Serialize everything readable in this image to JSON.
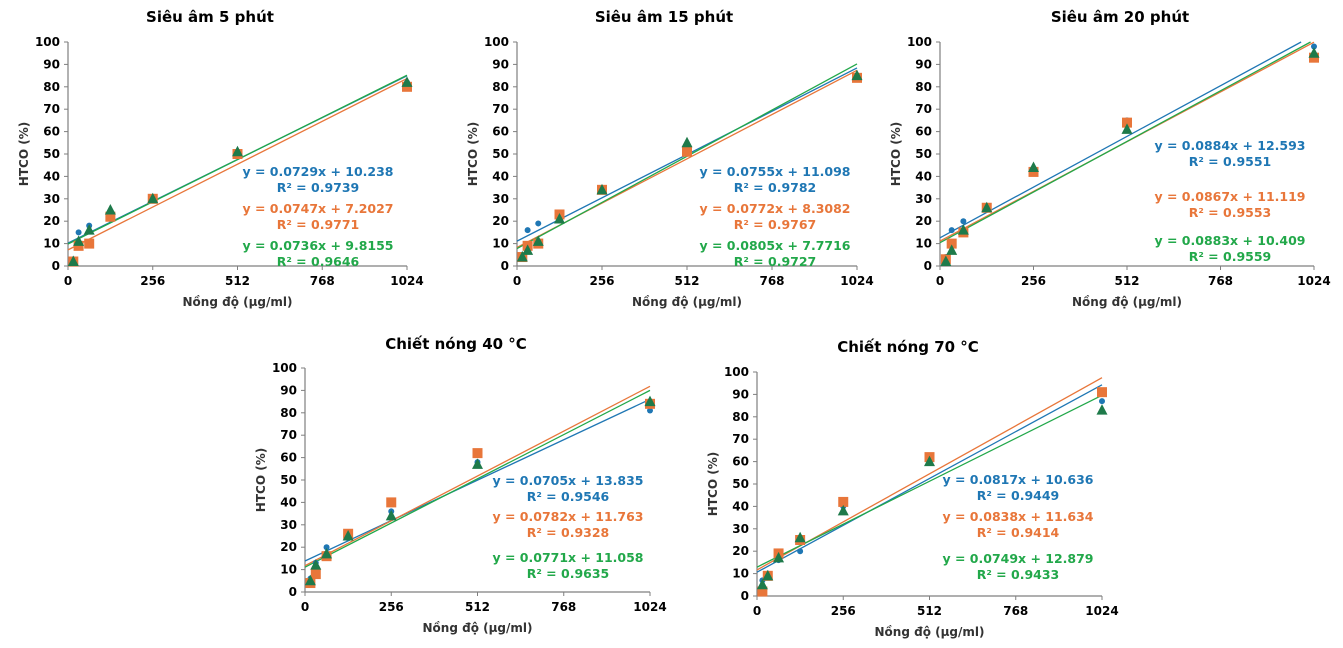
{
  "colors": {
    "blue": "#1F77B4",
    "orange": "#E8763A",
    "green": "#22A84A",
    "marker_green": "#1E7A4A",
    "axis": "#7F7F7F"
  },
  "chart_data": [
    {
      "type": "scatter",
      "title": "Siêu âm 5 phút",
      "xlabel": "Nồng độ (µg/ml)",
      "ylabel": "HTCO (%)",
      "xlim": [
        0,
        1024
      ],
      "ylim": [
        0,
        100
      ],
      "xticks": [
        0,
        256,
        512,
        768,
        1024
      ],
      "yticks": [
        0,
        10,
        20,
        30,
        40,
        50,
        60,
        70,
        80,
        90,
        100
      ],
      "series": [
        {
          "marker": "circle",
          "color": "#1F77B4",
          "points": [
            [
              16,
              3
            ],
            [
              32,
              15
            ],
            [
              64,
              18
            ],
            [
              128,
              21
            ],
            [
              256,
              30
            ],
            [
              512,
              50
            ],
            [
              1024,
              82
            ]
          ],
          "fit": {
            "slope": 0.0729,
            "intercept": 10.238
          },
          "equation": "y = 0.0729x + 10.238",
          "r2": "R² = 0.9739"
        },
        {
          "marker": "square",
          "color": "#E8763A",
          "points": [
            [
              16,
              2
            ],
            [
              32,
              9
            ],
            [
              64,
              10
            ],
            [
              128,
              22
            ],
            [
              256,
              30
            ],
            [
              512,
              50
            ],
            [
              1024,
              80
            ]
          ],
          "fit": {
            "slope": 0.0747,
            "intercept": 7.2027
          },
          "equation": "y = 0.0747x + 7.2027",
          "r2": "R² = 0.9771"
        },
        {
          "marker": "triangle",
          "color": "#1E7A4A",
          "points": [
            [
              16,
              2
            ],
            [
              32,
              11
            ],
            [
              64,
              16
            ],
            [
              128,
              25
            ],
            [
              256,
              30
            ],
            [
              512,
              51
            ],
            [
              1024,
              82
            ]
          ],
          "fit": {
            "slope": 0.0736,
            "intercept": 9.8155
          },
          "equation": "y = 0.0736x + 9.8155",
          "r2": "R² = 0.9646"
        }
      ]
    },
    {
      "type": "scatter",
      "title": "Siêu âm 15 phút",
      "xlabel": "Nồng độ (µg/ml)",
      "ylabel": "HTCO (%)",
      "xlim": [
        0,
        1024
      ],
      "ylim": [
        0,
        100
      ],
      "xticks": [
        0,
        256,
        512,
        768,
        1024
      ],
      "yticks": [
        0,
        10,
        20,
        30,
        40,
        50,
        60,
        70,
        80,
        90,
        100
      ],
      "series": [
        {
          "marker": "circle",
          "color": "#1F77B4",
          "points": [
            [
              16,
              5
            ],
            [
              32,
              16
            ],
            [
              64,
              19
            ],
            [
              128,
              22
            ],
            [
              256,
              34
            ],
            [
              512,
              52
            ],
            [
              1024,
              85
            ]
          ],
          "fit": {
            "slope": 0.0755,
            "intercept": 11.098
          },
          "equation": "y = 0.0755x + 11.098",
          "r2": "R² = 0.9782"
        },
        {
          "marker": "square",
          "color": "#E8763A",
          "points": [
            [
              16,
              4
            ],
            [
              32,
              9
            ],
            [
              64,
              10
            ],
            [
              128,
              23
            ],
            [
              256,
              34
            ],
            [
              512,
              51
            ],
            [
              1024,
              84
            ]
          ],
          "fit": {
            "slope": 0.0772,
            "intercept": 8.3082
          },
          "equation": "y = 0.0772x + 8.3082",
          "r2": "R² = 0.9767"
        },
        {
          "marker": "triangle",
          "color": "#1E7A4A",
          "points": [
            [
              16,
              4
            ],
            [
              32,
              7
            ],
            [
              64,
              11
            ],
            [
              128,
              21
            ],
            [
              256,
              34
            ],
            [
              512,
              55
            ],
            [
              1024,
              85
            ]
          ],
          "fit": {
            "slope": 0.0805,
            "intercept": 7.7716
          },
          "equation": "y = 0.0805x + 7.7716",
          "r2": "R² = 0.9727"
        }
      ]
    },
    {
      "type": "scatter",
      "title": "Siêu âm 20 phút",
      "xlabel": "Nồng độ (µg/ml)",
      "ylabel": "HTCO (%)",
      "xlim": [
        0,
        1024
      ],
      "ylim": [
        0,
        100
      ],
      "xticks": [
        0,
        256,
        512,
        768,
        1024
      ],
      "yticks": [
        0,
        10,
        20,
        30,
        40,
        50,
        60,
        70,
        80,
        90,
        100
      ],
      "series": [
        {
          "marker": "circle",
          "color": "#1F77B4",
          "points": [
            [
              16,
              4
            ],
            [
              32,
              16
            ],
            [
              64,
              20
            ],
            [
              128,
              26
            ],
            [
              256,
              42
            ],
            [
              512,
              65
            ],
            [
              1024,
              98
            ]
          ],
          "fit": {
            "slope": 0.0884,
            "intercept": 12.593
          },
          "equation": "y = 0.0884x + 12.593",
          "r2": "R² = 0.9551"
        },
        {
          "marker": "square",
          "color": "#E8763A",
          "points": [
            [
              16,
              3
            ],
            [
              32,
              10
            ],
            [
              64,
              15
            ],
            [
              128,
              26
            ],
            [
              256,
              42
            ],
            [
              512,
              64
            ],
            [
              1024,
              93
            ]
          ],
          "fit": {
            "slope": 0.0867,
            "intercept": 11.119
          },
          "equation": "y = 0.0867x + 11.119",
          "r2": "R² = 0.9553"
        },
        {
          "marker": "triangle",
          "color": "#1E7A4A",
          "points": [
            [
              16,
              2
            ],
            [
              32,
              7
            ],
            [
              64,
              16
            ],
            [
              128,
              26
            ],
            [
              256,
              44
            ],
            [
              512,
              61
            ],
            [
              1024,
              95
            ]
          ],
          "fit": {
            "slope": 0.0883,
            "intercept": 10.409
          },
          "equation": "y = 0.0883x + 10.409",
          "r2": "R² = 0.9559"
        }
      ]
    },
    {
      "type": "scatter",
      "title": "Chiết nóng 40 °C",
      "xlabel": "Nồng độ (µg/ml)",
      "ylabel": "HTCO (%)",
      "xlim": [
        0,
        1024
      ],
      "ylim": [
        0,
        100
      ],
      "xticks": [
        0,
        256,
        512,
        768,
        1024
      ],
      "yticks": [
        0,
        10,
        20,
        30,
        40,
        50,
        60,
        70,
        80,
        90,
        100
      ],
      "series": [
        {
          "marker": "circle",
          "color": "#1F77B4",
          "points": [
            [
              16,
              6
            ],
            [
              32,
              13
            ],
            [
              64,
              20
            ],
            [
              128,
              24
            ],
            [
              256,
              36
            ],
            [
              512,
              58
            ],
            [
              1024,
              81
            ]
          ],
          "fit": {
            "slope": 0.0705,
            "intercept": 13.835
          },
          "equation": "y = 0.0705x + 13.835",
          "r2": "R² = 0.9546"
        },
        {
          "marker": "square",
          "color": "#E8763A",
          "points": [
            [
              16,
              4
            ],
            [
              32,
              8
            ],
            [
              64,
              16
            ],
            [
              128,
              26
            ],
            [
              256,
              40
            ],
            [
              512,
              62
            ],
            [
              1024,
              84
            ]
          ],
          "fit": {
            "slope": 0.0782,
            "intercept": 11.763
          },
          "equation": "y = 0.0782x + 11.763",
          "r2": "R² = 0.9328"
        },
        {
          "marker": "triangle",
          "color": "#1E7A4A",
          "points": [
            [
              16,
              5
            ],
            [
              32,
              12
            ],
            [
              64,
              17
            ],
            [
              128,
              25
            ],
            [
              256,
              34
            ],
            [
              512,
              57
            ],
            [
              1024,
              85
            ]
          ],
          "fit": {
            "slope": 0.0771,
            "intercept": 11.058
          },
          "equation": "y = 0.0771x + 11.058",
          "r2": "R² = 0.9635"
        }
      ]
    },
    {
      "type": "scatter",
      "title": "Chiết nóng 70 °C",
      "xlabel": "Nồng độ (µg/ml)",
      "ylabel": "HTCO (%)",
      "xlim": [
        0,
        1024
      ],
      "ylim": [
        0,
        100
      ],
      "xticks": [
        0,
        256,
        512,
        768,
        1024
      ],
      "yticks": [
        0,
        10,
        20,
        30,
        40,
        50,
        60,
        70,
        80,
        90,
        100
      ],
      "series": [
        {
          "marker": "circle",
          "color": "#1F77B4",
          "points": [
            [
              16,
              7
            ],
            [
              32,
              10
            ],
            [
              64,
              16
            ],
            [
              128,
              20
            ],
            [
              256,
              40
            ],
            [
              512,
              61
            ],
            [
              1024,
              87
            ]
          ],
          "fit": {
            "slope": 0.0817,
            "intercept": 10.636
          },
          "equation": "y = 0.0817x + 10.636",
          "r2": "R² = 0.9449"
        },
        {
          "marker": "square",
          "color": "#E8763A",
          "points": [
            [
              16,
              2
            ],
            [
              32,
              9
            ],
            [
              64,
              19
            ],
            [
              128,
              25
            ],
            [
              256,
              42
            ],
            [
              512,
              62
            ],
            [
              1024,
              91
            ]
          ],
          "fit": {
            "slope": 0.0838,
            "intercept": 11.634
          },
          "equation": "y = 0.0838x + 11.634",
          "r2": "R² = 0.9414"
        },
        {
          "marker": "triangle",
          "color": "#1E7A4A",
          "points": [
            [
              16,
              5
            ],
            [
              32,
              9
            ],
            [
              64,
              17
            ],
            [
              128,
              26
            ],
            [
              256,
              38
            ],
            [
              512,
              60
            ],
            [
              1024,
              83
            ]
          ],
          "fit": {
            "slope": 0.0749,
            "intercept": 12.879
          },
          "equation": "y = 0.0749x + 12.879",
          "r2": "R² = 0.9433"
        }
      ]
    }
  ]
}
